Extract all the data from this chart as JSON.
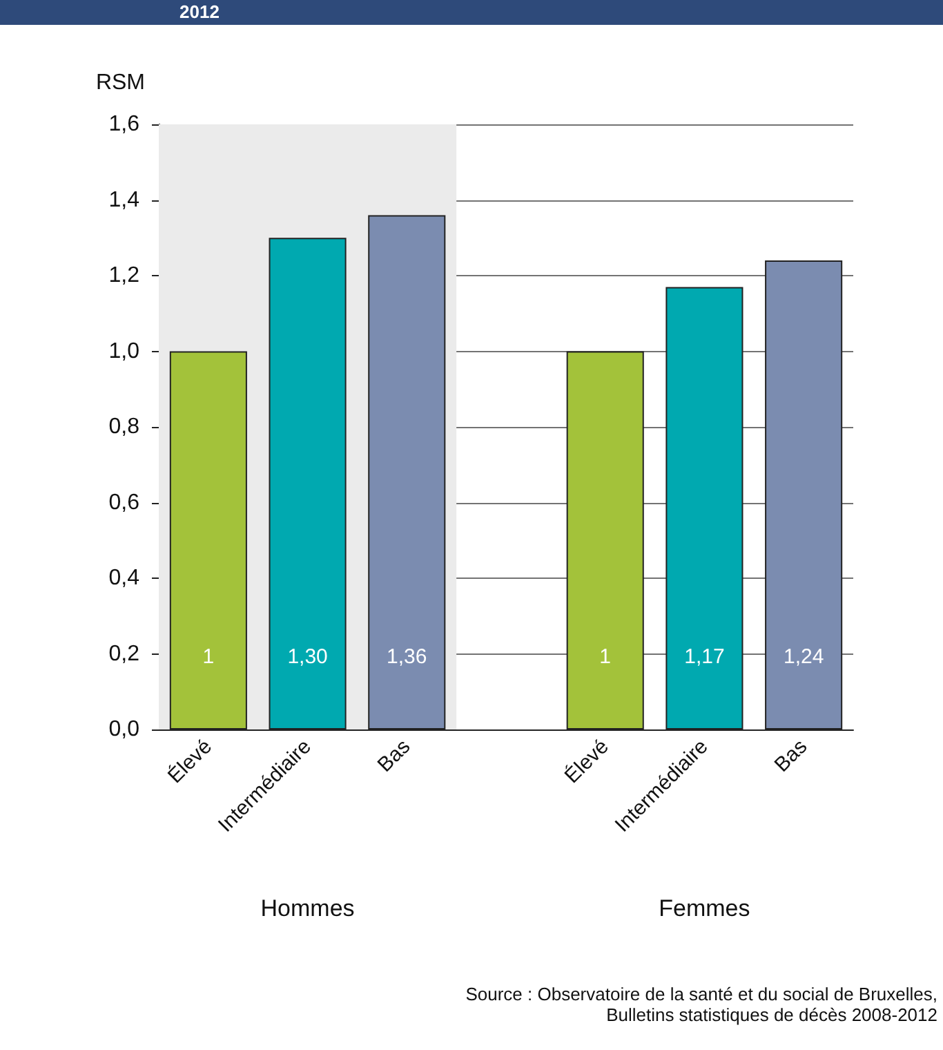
{
  "chart_data": {
    "type": "bar",
    "title": "2012",
    "ylabel": "RSM",
    "categories": [
      "Élevé",
      "Intermédiaire",
      "Bas",
      null,
      "Élevé",
      "Intermédiaire",
      "Bas"
    ],
    "values": [
      1,
      1.3,
      1.36,
      null,
      1,
      1.17,
      1.24
    ],
    "colors": [
      "#a3c23a",
      "#00a9b0",
      "#7b8cb0",
      null,
      "#a3c23a",
      "#00a9b0",
      "#7b8cb0"
    ],
    "value_labels": [
      "1",
      "1,30",
      "1,36",
      null,
      "1",
      "1,17",
      "1,24"
    ],
    "ylim": [
      0,
      1.6
    ],
    "yticks": [
      {
        "value": 0,
        "label": "0,0"
      },
      {
        "value": 0.2,
        "label": "0,2"
      },
      {
        "value": 0.4,
        "label": "0,4"
      },
      {
        "value": 0.6,
        "label": "0,6"
      },
      {
        "value": 0.8,
        "label": "0,8"
      },
      {
        "value": 1.0,
        "label": "1,0"
      },
      {
        "value": 1.2,
        "label": "1,2"
      },
      {
        "value": 1.4,
        "label": "1,4"
      },
      {
        "value": 1.6,
        "label": "1,6"
      }
    ],
    "grid": "y",
    "bands": [
      {
        "axis": "x",
        "from": "Élevé",
        "to": "Bas",
        "color": "#ebebeb"
      }
    ],
    "annotations": [
      "Hommes",
      "Femmes",
      "Source : Observatoire de la santé et du social de Bruxelles,\nBulletins statistiques de décès 2008-2012"
    ]
  }
}
